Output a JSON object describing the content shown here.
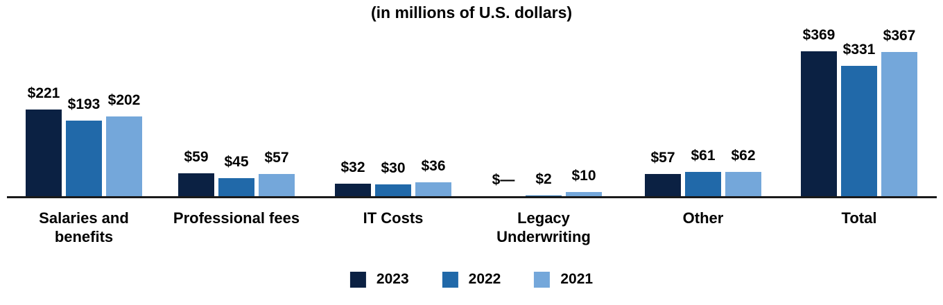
{
  "chart_data": {
    "type": "bar",
    "title": "(in millions of U.S. dollars)",
    "categories": [
      "Salaries and\nbenefits",
      "Professional fees",
      "IT Costs",
      "Legacy\nUnderwriting",
      "Other",
      "Total"
    ],
    "series": [
      {
        "name": "2023",
        "color": "#0b2143",
        "values": [
          221,
          59,
          32,
          0,
          57,
          369
        ],
        "value_labels": [
          "$221",
          "$59",
          "$32",
          "$—",
          "$57",
          "$369"
        ]
      },
      {
        "name": "2022",
        "color": "#2169a9",
        "values": [
          193,
          45,
          30,
          2,
          61,
          331
        ],
        "value_labels": [
          "$193",
          "$45",
          "$30",
          "$2",
          "$61",
          "$331"
        ]
      },
      {
        "name": "2021",
        "color": "#74a7da",
        "values": [
          202,
          57,
          36,
          10,
          62,
          367
        ],
        "value_labels": [
          "$202",
          "$57",
          "$36",
          "$10",
          "$62",
          "$367"
        ]
      }
    ],
    "xlabel": "",
    "ylabel": "",
    "ylim": [
      0,
      400
    ],
    "grid": false,
    "legend_position": "bottom",
    "axis_line_color": "#1a1a1a",
    "text_color": "#000000"
  }
}
